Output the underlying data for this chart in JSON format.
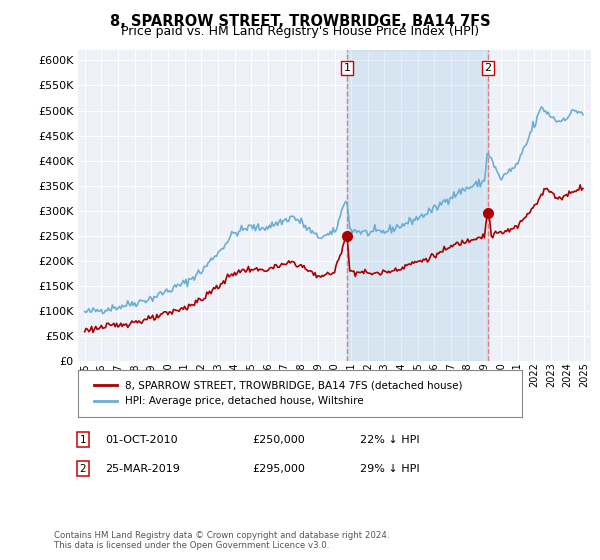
{
  "title": "8, SPARROW STREET, TROWBRIDGE, BA14 7FS",
  "subtitle": "Price paid vs. HM Land Registry's House Price Index (HPI)",
  "ylim": [
    0,
    620000
  ],
  "ytick_values": [
    0,
    50000,
    100000,
    150000,
    200000,
    250000,
    300000,
    350000,
    400000,
    450000,
    500000,
    550000,
    600000
  ],
  "background_color": "#ffffff",
  "plot_bg_color": "#eef2f8",
  "grid_color": "#ffffff",
  "hpi_color": "#6aaed6",
  "hpi_fill_color": "#c8dff0",
  "price_color": "#aa0000",
  "sale1_date": 2010.75,
  "sale1_price": 250000,
  "sale1_label": "1",
  "sale2_date": 2019.2,
  "sale2_price": 295000,
  "sale2_label": "2",
  "vline_color": "#e87878",
  "legend_label1": "8, SPARROW STREET, TROWBRIDGE, BA14 7FS (detached house)",
  "legend_label2": "HPI: Average price, detached house, Wiltshire",
  "note1_num": "1",
  "note1_date": "01-OCT-2010",
  "note1_price": "£250,000",
  "note1_pct": "22% ↓ HPI",
  "note2_num": "2",
  "note2_date": "25-MAR-2019",
  "note2_price": "£295,000",
  "note2_pct": "29% ↓ HPI",
  "footer": "Contains HM Land Registry data © Crown copyright and database right 2024.\nThis data is licensed under the Open Government Licence v3.0.",
  "title_fontsize": 10.5,
  "subtitle_fontsize": 9
}
